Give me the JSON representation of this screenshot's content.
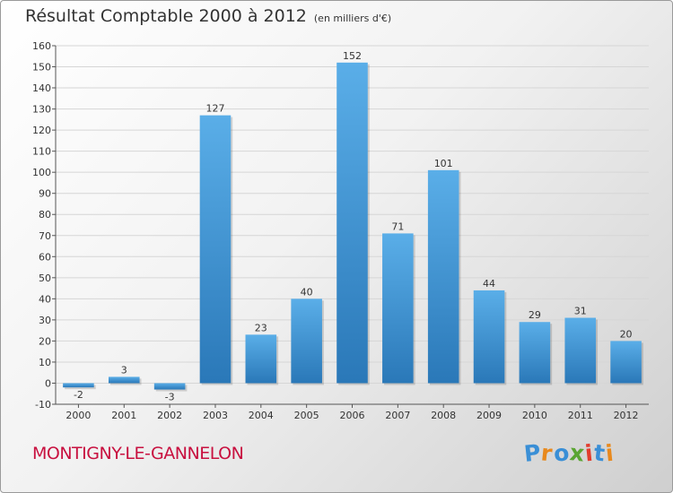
{
  "title": "Résultat Comptable 2000 à 2012",
  "subtitle": "(en milliers d'€)",
  "commune": "MONTIGNY-LE-GANNELON",
  "logo": {
    "letters": [
      "P",
      "r",
      "o",
      "x",
      "i",
      "t",
      "i"
    ],
    "colors": [
      "#3a8fd6",
      "#e8891d",
      "#3a8fd6",
      "#5aa532",
      "#e23c2e",
      "#3a8fd6",
      "#e8891d"
    ]
  },
  "colors": {
    "bar_top": "#5aaee8",
    "bar_bottom": "#2a78b8",
    "grid": "#d6d6d6",
    "axis": "#555555"
  },
  "chart_data": {
    "type": "bar",
    "title": "Résultat Comptable 2000 à 2012",
    "subtitle": "(en milliers d'€)",
    "xlabel": "",
    "ylabel": "",
    "categories": [
      "2000",
      "2001",
      "2002",
      "2003",
      "2004",
      "2005",
      "2006",
      "2007",
      "2008",
      "2009",
      "2010",
      "2011",
      "2012"
    ],
    "values": [
      -2,
      3,
      -3,
      127,
      23,
      40,
      152,
      71,
      101,
      44,
      29,
      31,
      20
    ],
    "labels": [
      "-2",
      "3",
      "-3",
      "127",
      "23",
      "40",
      "152",
      "71",
      "101",
      "44",
      "29",
      "31",
      "20"
    ],
    "ylim": [
      -10,
      160
    ],
    "yticks": [
      -10,
      0,
      10,
      20,
      30,
      40,
      50,
      60,
      70,
      80,
      90,
      100,
      110,
      120,
      130,
      140,
      150,
      160
    ],
    "ytick_labels": [
      "-10",
      "0",
      "10",
      "20",
      "30",
      "40",
      "50",
      "60",
      "70",
      "80",
      "90",
      "100",
      "110",
      "120",
      "130",
      "140",
      "150",
      "160"
    ],
    "grid": true,
    "legend": "none"
  }
}
